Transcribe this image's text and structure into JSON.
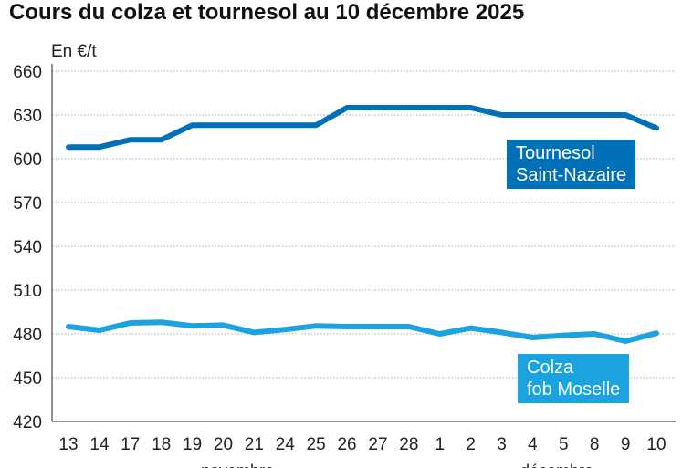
{
  "chart_data": {
    "type": "line",
    "title": "Cours du colza et tournesol au 10 décembre 2025",
    "ylabel": "En €/t",
    "ylim": [
      420,
      660
    ],
    "yticks": [
      420,
      450,
      480,
      510,
      540,
      570,
      600,
      630,
      660
    ],
    "grid": true,
    "categories": [
      "13",
      "14",
      "17",
      "18",
      "19",
      "20",
      "21",
      "24",
      "25",
      "26",
      "27",
      "28",
      "1",
      "2",
      "3",
      "4",
      "5",
      "8",
      "9",
      "10"
    ],
    "month_labels": [
      "novembre",
      "décembre"
    ],
    "series": [
      {
        "name": "Tournesol Saint-Nazaire",
        "label_lines": [
          "Tournesol",
          "Saint-Nazaire"
        ],
        "color": "#0070b8",
        "values": [
          608,
          608,
          613,
          613,
          623,
          623,
          623,
          623,
          623,
          635,
          635,
          635,
          635,
          635,
          630,
          630,
          630,
          630,
          630,
          621
        ]
      },
      {
        "name": "Colza fob Moselle",
        "label_lines": [
          "Colza",
          "fob Moselle"
        ],
        "color": "#1aa3e0",
        "values": [
          485,
          482.5,
          487.5,
          488,
          485.5,
          486,
          481,
          483,
          485.5,
          485,
          485,
          485,
          480,
          484,
          481,
          477.5,
          479,
          480,
          475,
          480.5
        ]
      }
    ]
  }
}
